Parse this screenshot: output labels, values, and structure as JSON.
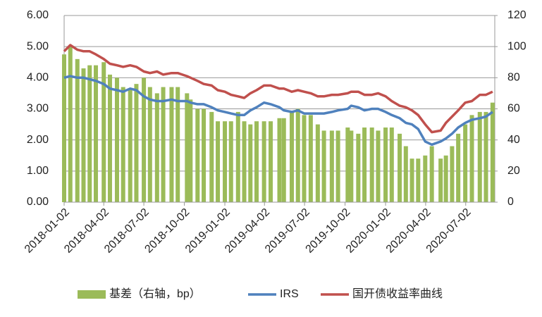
{
  "chart_data": {
    "type": "combo",
    "x": [
      "2018-01-02",
      "2018-01-16",
      "2018-02-01",
      "2018-02-15",
      "2018-03-01",
      "2018-03-15",
      "2018-04-02",
      "2018-04-16",
      "2018-05-02",
      "2018-05-16",
      "2018-06-01",
      "2018-06-15",
      "2018-07-02",
      "2018-07-16",
      "2018-08-01",
      "2018-08-15",
      "2018-09-03",
      "2018-09-17",
      "2018-10-08",
      "2018-10-16",
      "2018-11-01",
      "2018-11-15",
      "2018-12-03",
      "2018-12-17",
      "2019-01-02",
      "2019-01-16",
      "2019-02-01",
      "2019-02-15",
      "2019-03-01",
      "2019-03-15",
      "2019-04-01",
      "2019-04-16",
      "2019-05-06",
      "2019-05-16",
      "2019-06-03",
      "2019-06-17",
      "2019-07-01",
      "2019-07-16",
      "2019-08-01",
      "2019-08-15",
      "2019-09-02",
      "2019-09-16",
      "2019-10-08",
      "2019-10-16",
      "2019-11-01",
      "2019-11-15",
      "2019-12-02",
      "2019-12-16",
      "2020-01-02",
      "2020-01-16",
      "2020-02-03",
      "2020-02-17",
      "2020-03-02",
      "2020-03-16",
      "2020-04-01",
      "2020-04-16",
      "2020-05-06",
      "2020-05-18",
      "2020-06-01",
      "2020-06-15",
      "2020-07-01",
      "2020-07-16",
      "2020-08-03",
      "2020-08-17",
      "2020-09-01"
    ],
    "xlim": [
      "2018-01-02",
      "2020-09-06"
    ],
    "xticks": [
      "2018-01-02",
      "2018-04-02",
      "2018-07-02",
      "2018-10-02",
      "2019-01-02",
      "2019-04-02",
      "2019-07-02",
      "2019-10-02",
      "2020-01-02",
      "2020-04-02",
      "2020-07-02"
    ],
    "ylim": [
      0,
      6
    ],
    "yticks": [
      {
        "value": 0,
        "label": "0.00"
      },
      {
        "value": 1,
        "label": "1.00"
      },
      {
        "value": 2,
        "label": "2.00"
      },
      {
        "value": 3,
        "label": "3.00"
      },
      {
        "value": 4,
        "label": "4.00"
      },
      {
        "value": 5,
        "label": "5.00"
      },
      {
        "value": 6,
        "label": "6.00"
      }
    ],
    "y2lim": [
      0,
      120
    ],
    "y2ticks": [
      0,
      20,
      40,
      60,
      80,
      100,
      120
    ],
    "grid": true,
    "legend": "bottom",
    "series": [
      {
        "name": "基差（右轴，bp）",
        "type": "bar",
        "axis": "y2",
        "color": "#9bbb59",
        "values": [
          95,
          100,
          92,
          86,
          88,
          88,
          90,
          82,
          80,
          74,
          73,
          76,
          80,
          74,
          70,
          74,
          74,
          74,
          70,
          66,
          60,
          60,
          58,
          52,
          52,
          52,
          58,
          52,
          50,
          52,
          52,
          52,
          54,
          54,
          58,
          60,
          56,
          56,
          50,
          46,
          46,
          46,
          48,
          46,
          44,
          48,
          48,
          46,
          48,
          48,
          44,
          36,
          28,
          28,
          30,
          36,
          28,
          30,
          36,
          44,
          50,
          56,
          58,
          58,
          64
        ]
      },
      {
        "name": "IRS",
        "type": "line",
        "color": "#4f81bd",
        "values": [
          4.0,
          4.05,
          4.0,
          4.0,
          3.95,
          3.9,
          3.8,
          3.65,
          3.6,
          3.55,
          3.65,
          3.6,
          3.4,
          3.3,
          3.25,
          3.25,
          3.3,
          3.25,
          3.25,
          3.2,
          3.15,
          3.15,
          3.05,
          2.95,
          2.9,
          2.85,
          2.8,
          2.8,
          2.95,
          3.05,
          3.2,
          3.15,
          3.05,
          2.95,
          2.9,
          2.95,
          2.85,
          2.85,
          2.85,
          2.85,
          2.9,
          2.95,
          3.0,
          3.1,
          3.05,
          2.95,
          3.0,
          3.0,
          2.9,
          2.8,
          2.7,
          2.55,
          2.5,
          2.35,
          1.95,
          1.85,
          1.95,
          2.05,
          2.2,
          2.4,
          2.55,
          2.65,
          2.7,
          2.75,
          2.9
        ]
      },
      {
        "name": "国开债收益率曲线",
        "type": "line",
        "color": "#c0504d",
        "values": [
          4.85,
          5.05,
          4.9,
          4.85,
          4.85,
          4.75,
          4.6,
          4.45,
          4.4,
          4.35,
          4.4,
          4.35,
          4.2,
          4.15,
          4.2,
          4.1,
          4.15,
          4.15,
          4.05,
          4.0,
          3.9,
          3.8,
          3.75,
          3.6,
          3.55,
          3.45,
          3.4,
          3.35,
          3.5,
          3.6,
          3.75,
          3.75,
          3.65,
          3.65,
          3.55,
          3.6,
          3.55,
          3.5,
          3.4,
          3.4,
          3.45,
          3.45,
          3.5,
          3.55,
          3.55,
          3.45,
          3.45,
          3.5,
          3.4,
          3.25,
          3.1,
          3.05,
          2.95,
          2.8,
          2.5,
          2.25,
          2.3,
          2.55,
          2.75,
          2.95,
          3.2,
          3.25,
          3.45,
          3.45,
          3.55
        ]
      }
    ]
  }
}
